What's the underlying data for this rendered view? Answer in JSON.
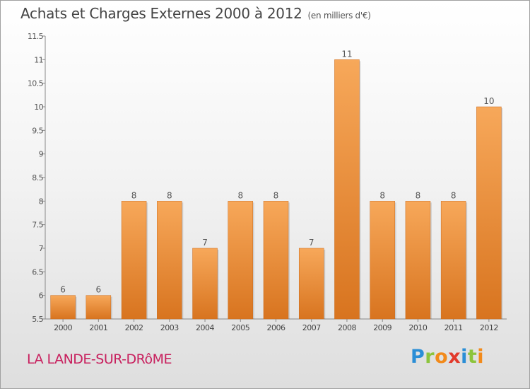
{
  "header": {
    "title": "Achats et Charges Externes 2000 à 2012",
    "subtitle": "(en milliers d'€)"
  },
  "footer": {
    "commune": "LA LANDE-SUR-DRôME",
    "logo_letters": [
      {
        "char": "P",
        "color": "#2a8ed6"
      },
      {
        "char": "r",
        "color": "#8cc43c"
      },
      {
        "char": "o",
        "color": "#f28a1a"
      },
      {
        "char": "x",
        "color": "#e23a2c"
      },
      {
        "char": "i",
        "color": "#2a8ed6"
      },
      {
        "char": "t",
        "color": "#8cc43c"
      },
      {
        "char": "i",
        "color": "#f28a1a"
      }
    ]
  },
  "chart_data": {
    "type": "bar",
    "categories": [
      "2000",
      "2001",
      "2002",
      "2003",
      "2004",
      "2005",
      "2006",
      "2007",
      "2008",
      "2009",
      "2010",
      "2011",
      "2012"
    ],
    "values": [
      6,
      6,
      8,
      8,
      7,
      8,
      8,
      7,
      11,
      8,
      8,
      8,
      10
    ],
    "value_labels": [
      "6",
      "6",
      "8",
      "8",
      "7",
      "8",
      "8",
      "7",
      "11",
      "8",
      "8",
      "8",
      "10"
    ],
    "ylim": [
      5.5,
      11.5
    ],
    "yticks": [
      5.5,
      6,
      6.5,
      7,
      7.5,
      8,
      8.5,
      9,
      9.5,
      10,
      10.5,
      11,
      11.5
    ],
    "ytick_labels": [
      "5.5",
      "6",
      "6.5",
      "7",
      "7.5",
      "8",
      "8.5",
      "9",
      "9.5",
      "10",
      "10.5",
      "11",
      "11.5"
    ],
    "grid": false,
    "bar_color_top": "#f7a85a",
    "bar_color_bottom": "#d8741f",
    "axis_color": "#888888"
  }
}
